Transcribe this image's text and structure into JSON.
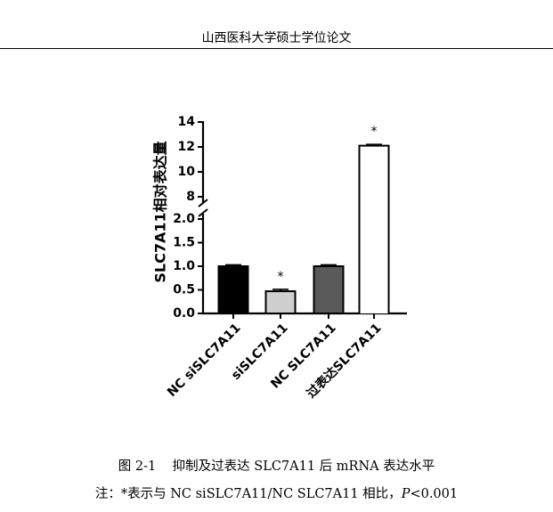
{
  "header": {
    "title": "山西医科大学硕士学位论文"
  },
  "chart_data": {
    "type": "bar",
    "title": "",
    "xlabel": "",
    "ylabel": "SLC7A11相对表达量",
    "categories": [
      "NC siSLC7A11",
      "siSLC7A11",
      "NC SLC7A11",
      "过表达SLC7A11"
    ],
    "values": [
      1.0,
      0.47,
      1.0,
      12.1
    ],
    "errors": [
      0.03,
      0.04,
      0.03,
      0.1
    ],
    "significance": [
      "",
      "*",
      "",
      "*"
    ],
    "fill_colors": [
      "#000000",
      "#cfcfcf",
      "#5a5a5a",
      "#ffffff"
    ],
    "y_axis_broken": true,
    "lower_segment": {
      "ylim": [
        0,
        2.0
      ],
      "ticks": [
        "0.0",
        "0.5",
        "1.0",
        "1.5",
        "2.0"
      ]
    },
    "upper_segment": {
      "ylim": [
        8,
        14
      ],
      "ticks": [
        "8",
        "10",
        "12",
        "14"
      ]
    },
    "grid": false,
    "legend": "none"
  },
  "caption": {
    "figure_number": "图 2-1",
    "text": "抑制及过表达 SLC7A11 后 mRNA 表达水平"
  },
  "note": {
    "prefix": "注：*表示与 NC siSLC7A11/NC SLC7A11 相比，",
    "stat_symbol": "P",
    "stat_value": "<0.001"
  }
}
